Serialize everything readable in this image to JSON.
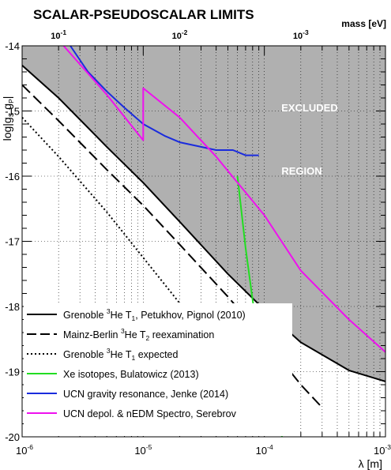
{
  "chart_data": {
    "type": "line",
    "title": "SCALAR-PSEUDOSCALAR LIMITS",
    "top_axis_label": "mass [eV]",
    "top_axis_ticks": [
      {
        "base": "10",
        "exp": "-1",
        "lambda": 2e-06
      },
      {
        "base": "10",
        "exp": "-2",
        "lambda": 2e-05
      },
      {
        "base": "10",
        "exp": "-3",
        "lambda": 0.0002
      }
    ],
    "xlabel": "λ  [m]",
    "ylabel": "log|g_S g_P|",
    "xscale": "log",
    "xlim": [
      1e-06,
      0.001
    ],
    "ylim": [
      -20,
      -14
    ],
    "x_ticks": [
      {
        "value": 1e-06,
        "base": "10",
        "exp": "-6"
      },
      {
        "value": 1e-05,
        "base": "10",
        "exp": "-5"
      },
      {
        "value": 0.0001,
        "base": "10",
        "exp": "-4"
      },
      {
        "value": 0.001,
        "base": "10",
        "exp": "-3"
      }
    ],
    "y_ticks": [
      -14,
      -15,
      -16,
      -17,
      -18,
      -19,
      -20
    ],
    "excluded_fill": "#b0b0b0",
    "annotations": [
      "EXCLUDED",
      "REGION"
    ],
    "series": [
      {
        "name_parts": [
          "Grenoble ",
          "3",
          "He T",
          "1",
          ", Petukhov, Pignol (2010)"
        ],
        "color": "#000000",
        "style": "solid",
        "width": 2,
        "x": [
          1e-06,
          2e-06,
          5e-06,
          1e-05,
          2e-05,
          5e-05,
          0.0001,
          0.0002,
          0.0005,
          0.001
        ],
        "y": [
          -14.3,
          -14.8,
          -15.55,
          -16.1,
          -16.7,
          -17.5,
          -18.05,
          -18.55,
          -18.98,
          -19.15
        ]
      },
      {
        "name_parts": [
          "Mainz-Berlin ",
          "3",
          "He T",
          "2",
          " reexamination"
        ],
        "color": "#000000",
        "style": "dashed",
        "width": 2,
        "x": [
          1e-06,
          2e-06,
          5e-06,
          1e-05,
          2e-05,
          5e-05,
          0.0001,
          0.0002,
          0.0003
        ],
        "y": [
          -14.6,
          -15.15,
          -15.9,
          -16.45,
          -17.05,
          -17.85,
          -18.5,
          -19.2,
          -19.55
        ]
      },
      {
        "name_parts": [
          "Grenoble ",
          "3",
          "He T",
          "1",
          " expected"
        ],
        "color": "#000000",
        "style": "dotted",
        "width": 2,
        "x": [
          1e-06,
          2e-06,
          5e-06,
          1e-05,
          2e-05,
          5e-05,
          0.0001
        ],
        "y": [
          -15.1,
          -15.7,
          -16.55,
          -17.25,
          -17.95,
          -18.95,
          -19.75
        ]
      },
      {
        "name_parts": [
          "Xe isotopes, Bulatowicz (2013)"
        ],
        "color": "#22dd22",
        "style": "solid",
        "width": 2,
        "x": [
          6e-05,
          7e-05,
          8e-05,
          9e-05,
          0.0001,
          0.00012,
          0.00014
        ],
        "y": [
          -16.0,
          -17.1,
          -17.9,
          -18.5,
          -18.95,
          -19.55,
          -20.0
        ]
      },
      {
        "name_parts": [
          "UCN gravity resonance, Jenke (2014)"
        ],
        "color": "#1a2bdd",
        "style": "solid",
        "width": 2,
        "x": [
          2.5e-06,
          3.5e-06,
          5e-06,
          7e-06,
          1e-05,
          1.5e-05,
          2e-05,
          3e-05,
          4e-05,
          5.5e-05,
          7e-05,
          9e-05
        ],
        "y": [
          -14.0,
          -14.4,
          -14.7,
          -14.95,
          -15.2,
          -15.38,
          -15.48,
          -15.55,
          -15.6,
          -15.6,
          -15.68,
          -15.68
        ]
      },
      {
        "name_parts": [
          "UCN depol. & nEDM Spectro, Serebrov"
        ],
        "color": "#ee11ee",
        "style": "solid",
        "width": 2,
        "x": [
          2.2e-06,
          5e-06,
          1e-05,
          1e-05,
          2e-05,
          4e-05,
          0.0001,
          0.0002,
          0.0005,
          0.001
        ],
        "y": [
          -14.0,
          -14.75,
          -15.45,
          -14.65,
          -15.1,
          -15.7,
          -16.6,
          -17.45,
          -18.2,
          -18.7
        ]
      }
    ]
  }
}
